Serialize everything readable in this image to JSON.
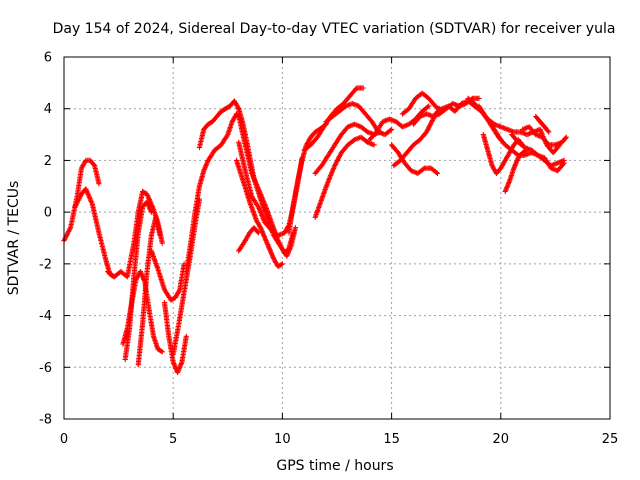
{
  "chart_data": {
    "type": "scatter",
    "title": "Day 154 of 2024, Sidereal Day-to-day VTEC variation (SDTVAR) for receiver yula",
    "xlabel": "GPS time / hours",
    "ylabel": "SDTVAR / TECUs",
    "xlim": [
      0,
      25
    ],
    "ylim": [
      -8,
      6
    ],
    "xticks": [
      0,
      5,
      10,
      15,
      20,
      25
    ],
    "yticks": [
      -8,
      -6,
      -4,
      -2,
      0,
      2,
      4,
      6
    ],
    "grid": true,
    "marker": "plus",
    "series": [
      {
        "name": "SDTVAR",
        "color": "#ff0000",
        "tracks": [
          {
            "x": [
              0.0,
              0.3,
              0.6,
              0.8,
              1.0,
              1.2,
              1.4,
              1.6
            ],
            "y": [
              -1.1,
              -0.6,
              0.6,
              1.7,
              2.0,
              2.0,
              1.8,
              1.1
            ]
          },
          {
            "x": [
              0.5,
              0.8,
              1.0,
              1.3,
              1.6,
              1.9,
              2.1,
              2.3
            ],
            "y": [
              0.2,
              0.7,
              0.9,
              0.3,
              -0.8,
              -1.8,
              -2.4,
              -2.5
            ]
          },
          {
            "x": [
              2.0,
              2.3,
              2.6,
              2.9,
              3.2,
              3.4,
              3.6,
              3.8,
              4.1,
              4.3,
              4.5
            ],
            "y": [
              -2.3,
              -2.5,
              -2.3,
              -2.5,
              -1.2,
              0.0,
              0.8,
              0.7,
              0.1,
              -0.4,
              -1.2
            ]
          },
          {
            "x": [
              4.0,
              4.3,
              4.6,
              4.9,
              5.1,
              5.3,
              5.5
            ],
            "y": [
              -1.5,
              -2.2,
              -3.0,
              -3.4,
              -3.3,
              -3.0,
              -2.0
            ]
          },
          {
            "x": [
              2.7,
              2.9,
              3.1,
              3.3,
              3.5,
              3.7,
              3.9,
              4.1,
              4.3,
              4.5
            ],
            "y": [
              -5.1,
              -4.5,
              -3.5,
              -2.6,
              -2.3,
              -2.7,
              -3.8,
              -4.8,
              -5.3,
              -5.4
            ]
          },
          {
            "x": [
              2.8,
              3.0,
              3.2,
              3.4,
              3.6,
              3.8,
              4.0
            ],
            "y": [
              -5.7,
              -4.5,
              -2.5,
              -0.8,
              0.2,
              0.4,
              0.0
            ]
          },
          {
            "x": [
              3.4,
              3.6,
              3.8,
              4.0,
              4.2,
              4.4
            ],
            "y": [
              -5.9,
              -4.3,
              -2.3,
              -0.9,
              -0.2,
              -0.9
            ]
          },
          {
            "x": [
              4.6,
              4.8,
              5.0,
              5.2,
              5.4,
              5.6
            ],
            "y": [
              -3.5,
              -4.8,
              -5.8,
              -6.2,
              -5.8,
              -4.8
            ]
          },
          {
            "x": [
              5.0,
              5.2,
              5.4,
              5.6,
              5.8,
              6.0,
              6.2
            ],
            "y": [
              -5.5,
              -4.6,
              -3.6,
              -2.6,
              -1.6,
              -0.5,
              0.5
            ]
          },
          {
            "x": [
              5.6,
              5.8,
              6.0,
              6.2,
              6.4,
              6.6,
              6.9,
              7.2,
              7.5,
              7.7,
              7.9,
              8.1
            ],
            "y": [
              -2.3,
              -1.2,
              0.0,
              1.0,
              1.6,
              2.0,
              2.4,
              2.6,
              3.0,
              3.5,
              3.8,
              3.6
            ]
          },
          {
            "x": [
              6.2,
              6.4,
              6.6,
              6.8,
              7.0,
              7.2,
              7.4,
              7.6,
              7.8,
              8.0
            ],
            "y": [
              2.5,
              3.2,
              3.4,
              3.5,
              3.7,
              3.9,
              4.0,
              4.1,
              4.3,
              4.0
            ]
          },
          {
            "x": [
              7.9,
              8.2,
              8.5,
              8.8,
              9.0,
              9.2,
              9.4,
              9.6,
              9.8,
              10.0
            ],
            "y": [
              2.0,
              1.2,
              0.4,
              -0.3,
              -0.6,
              -1.0,
              -1.4,
              -1.8,
              -2.1,
              -2.0
            ]
          },
          {
            "x": [
              8.0,
              8.3,
              8.6,
              8.9,
              9.2,
              9.5,
              9.8,
              10.1,
              10.3,
              10.5,
              10.7,
              10.9
            ],
            "y": [
              2.7,
              1.6,
              0.6,
              0.2,
              -0.4,
              -0.7,
              -0.9,
              -0.8,
              -0.5,
              0.2,
              1.1,
              2.1
            ]
          },
          {
            "x": [
              8.0,
              8.3,
              8.6,
              8.9,
              9.2,
              9.5,
              9.8,
              10.1,
              10.3,
              10.5
            ],
            "y": [
              3.7,
              2.6,
              1.5,
              0.9,
              0.3,
              -0.4,
              -1.1,
              -1.6,
              -1.4,
              -0.8
            ]
          },
          {
            "x": [
              8.0,
              8.2,
              8.4,
              8.7,
              9.0,
              9.3,
              9.6,
              9.9,
              10.2,
              10.4,
              10.6
            ],
            "y": [
              4.0,
              3.4,
              2.6,
              1.3,
              0.5,
              -0.2,
              -0.9,
              -1.3,
              -1.7,
              -1.3,
              -0.6
            ]
          },
          {
            "x": [
              8.0,
              8.3,
              8.5,
              8.7,
              8.9
            ],
            "y": [
              -1.5,
              -1.1,
              -0.8,
              -0.6,
              -0.8
            ]
          },
          {
            "x": [
              10.3,
              10.5,
              10.7,
              10.9,
              11.1,
              11.3,
              11.5,
              11.7,
              12.0
            ],
            "y": [
              -0.8,
              0.3,
              1.2,
              2.0,
              2.6,
              2.9,
              3.1,
              3.2,
              3.4
            ]
          },
          {
            "x": [
              11.0,
              11.3,
              11.6,
              11.9,
              12.2,
              12.5,
              12.8,
              13.1,
              13.4,
              13.7
            ],
            "y": [
              2.4,
              2.6,
              2.9,
              3.3,
              3.7,
              4.0,
              4.2,
              4.5,
              4.8,
              4.8
            ]
          },
          {
            "x": [
              12.0,
              12.3,
              12.6,
              12.9,
              13.2,
              13.5,
              13.8,
              14.1,
              14.4,
              14.7,
              15.0
            ],
            "y": [
              3.5,
              3.7,
              3.9,
              4.1,
              4.2,
              4.1,
              3.8,
              3.5,
              3.1,
              3.0,
              3.2
            ]
          },
          {
            "x": [
              11.5,
              11.8,
              12.1,
              12.4,
              12.7,
              13.0,
              13.3,
              13.6,
              13.9,
              14.2,
              14.5
            ],
            "y": [
              1.5,
              1.8,
              2.2,
              2.6,
              3.0,
              3.3,
              3.4,
              3.3,
              3.1,
              3.0,
              3.1
            ]
          },
          {
            "x": [
              11.5,
              11.8,
              12.1,
              12.4,
              12.7,
              13.0,
              13.3,
              13.6,
              13.9,
              14.2
            ],
            "y": [
              -0.2,
              0.5,
              1.2,
              1.8,
              2.3,
              2.6,
              2.8,
              2.9,
              2.7,
              2.6
            ]
          },
          {
            "x": [
              14.0,
              14.3,
              14.6,
              14.9,
              15.2,
              15.5,
              15.8,
              16.1,
              16.4,
              16.7
            ],
            "y": [
              2.8,
              3.1,
              3.5,
              3.6,
              3.5,
              3.3,
              3.4,
              3.6,
              3.9,
              4.1
            ]
          },
          {
            "x": [
              15.0,
              15.3,
              15.6,
              15.9,
              16.2,
              16.5,
              16.8,
              17.1
            ],
            "y": [
              2.6,
              2.3,
              1.9,
              1.6,
              1.5,
              1.7,
              1.7,
              1.5
            ]
          },
          {
            "x": [
              15.1,
              15.4,
              15.7,
              16.0,
              16.3,
              16.6,
              16.9,
              17.2
            ],
            "y": [
              1.8,
              2.0,
              2.3,
              2.6,
              2.8,
              3.1,
              3.6,
              4.0
            ]
          },
          {
            "x": [
              15.5,
              15.8,
              16.1,
              16.4,
              16.7,
              17.0,
              17.3
            ],
            "y": [
              3.8,
              4.0,
              4.4,
              4.6,
              4.4,
              4.1,
              3.9
            ]
          },
          {
            "x": [
              16.0,
              16.3,
              16.6,
              16.9,
              17.2,
              17.5,
              17.8,
              18.1,
              18.4,
              18.7,
              19.0
            ],
            "y": [
              3.4,
              3.7,
              3.8,
              3.7,
              3.8,
              4.0,
              4.2,
              4.1,
              4.2,
              4.4,
              4.4
            ]
          },
          {
            "x": [
              17.0,
              17.3,
              17.6,
              17.9,
              18.2,
              18.5,
              18.8,
              19.1,
              19.4,
              19.7,
              20.0
            ],
            "y": [
              3.8,
              4.0,
              4.1,
              3.9,
              4.2,
              4.3,
              4.1,
              3.9,
              3.6,
              3.2,
              2.8
            ]
          },
          {
            "x": [
              18.5,
              18.8,
              19.1,
              19.4,
              19.7,
              20.0,
              20.3,
              20.6,
              20.9,
              21.2,
              21.5,
              21.8,
              22.1,
              22.4,
              22.7
            ],
            "y": [
              4.4,
              4.2,
              3.9,
              3.6,
              3.4,
              3.3,
              3.2,
              3.1,
              3.1,
              3.0,
              3.1,
              3.2,
              2.6,
              2.3,
              2.6
            ]
          },
          {
            "x": [
              19.0,
              19.3,
              19.6,
              19.9,
              20.2,
              20.5,
              20.8,
              21.1,
              21.4,
              21.7,
              22.0,
              22.3,
              22.6,
              22.9
            ],
            "y": [
              4.1,
              3.7,
              3.3,
              2.9,
              2.6,
              2.4,
              2.2,
              2.2,
              2.3,
              2.2,
              2.1,
              1.7,
              1.6,
              1.9
            ]
          },
          {
            "x": [
              19.2,
              19.4,
              19.6,
              19.8,
              20.0,
              20.2,
              20.4,
              20.6,
              20.8,
              21.0
            ],
            "y": [
              3.0,
              2.4,
              1.8,
              1.5,
              1.7,
              2.0,
              2.3,
              2.6,
              2.8,
              2.6
            ]
          },
          {
            "x": [
              20.2,
              20.4,
              20.6,
              20.8,
              21.0,
              21.2
            ],
            "y": [
              0.8,
              1.2,
              1.7,
              2.1,
              2.3,
              2.4
            ]
          },
          {
            "x": [
              20.5,
              20.8,
              21.1,
              21.4,
              21.7,
              22.0,
              22.3,
              22.6,
              22.9
            ],
            "y": [
              3.0,
              2.7,
              2.5,
              2.4,
              2.2,
              2.0,
              1.8,
              1.9,
              2.0
            ]
          },
          {
            "x": [
              21.0,
              21.3,
              21.6,
              21.9,
              22.2,
              22.5,
              22.8,
              23.0
            ],
            "y": [
              3.2,
              3.3,
              3.0,
              2.9,
              2.6,
              2.6,
              2.7,
              2.9
            ]
          },
          {
            "x": [
              21.6,
              21.8,
              22.0,
              22.2
            ],
            "y": [
              3.7,
              3.5,
              3.3,
              3.1
            ]
          }
        ]
      }
    ]
  }
}
